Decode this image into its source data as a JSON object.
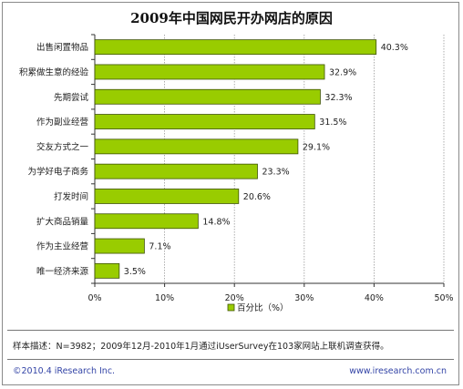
{
  "chart_data": {
    "type": "bar",
    "orientation": "horizontal",
    "title": "2009年中国网民开办网店的原因",
    "categories": [
      "出售闲置物品",
      "积累做生意的经验",
      "先期尝试",
      "作为副业经营",
      "交友方式之一",
      "为学好电子商务",
      "打发时间",
      "扩大商品销量",
      "作为主业经营",
      "唯一经济来源"
    ],
    "series": [
      {
        "name": "百分比（%）",
        "values": [
          40.3,
          32.9,
          32.3,
          31.5,
          29.1,
          23.3,
          20.6,
          14.8,
          7.1,
          3.5
        ],
        "labels": [
          "40.3%",
          "32.9%",
          "32.3%",
          "31.5%",
          "29.1%",
          "23.3%",
          "20.6%",
          "14.8%",
          "7.1%",
          "3.5%"
        ]
      }
    ],
    "xlim": [
      0,
      50
    ],
    "x_ticks": [
      0,
      10,
      20,
      30,
      40,
      50
    ],
    "x_tick_labels": [
      "0%",
      "10%",
      "20%",
      "30%",
      "40%",
      "50%"
    ],
    "grid": true,
    "legend": "bottom",
    "colors": {
      "bar_fill": "#99cc00",
      "bar_edge": "#3d5200",
      "grid": "#9a9a9a"
    }
  },
  "footer": {
    "note": "样本描述：N=3982；2009年12月-2010年1月通过iUserSurvey在103家网站上联机调查获得。",
    "copyright": "©2010.4 iResearch Inc.",
    "website": "www.iresearch.com.cn"
  }
}
